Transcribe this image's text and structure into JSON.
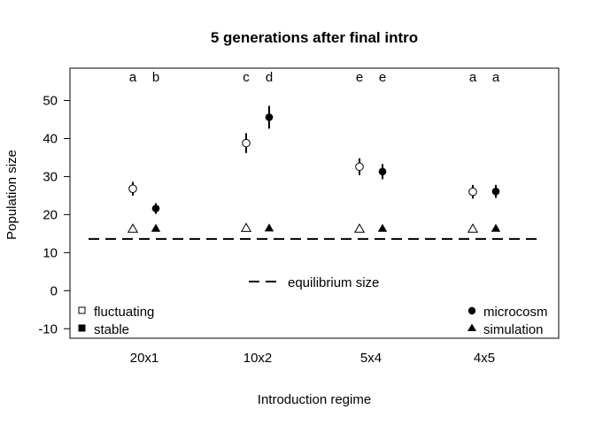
{
  "chart_data": {
    "type": "scatter",
    "title": "5 generations after final intro",
    "xlabel": "Introduction regime",
    "ylabel": "Population size",
    "categories": [
      "20x1",
      "10x2",
      "5x4",
      "4x5"
    ],
    "ylim": [
      -12.5,
      58.5
    ],
    "yticks": [
      -10,
      0,
      10,
      20,
      30,
      40,
      50
    ],
    "equilibrium_size": 13.6,
    "series": [
      {
        "name": "microcosm",
        "treatment": "fluctuating",
        "marker": "open-circle",
        "values": [
          26.8,
          38.8,
          32.6,
          26.0
        ],
        "err_low": [
          25.0,
          36.2,
          30.4,
          24.2
        ],
        "err_high": [
          28.6,
          41.4,
          34.8,
          27.8
        ]
      },
      {
        "name": "microcosm",
        "treatment": "stable",
        "marker": "filled-circle",
        "values": [
          21.6,
          45.6,
          31.3,
          26.1
        ],
        "err_low": [
          20.2,
          42.6,
          29.3,
          24.4
        ],
        "err_high": [
          23.0,
          48.6,
          33.3,
          27.8
        ]
      },
      {
        "name": "simulation",
        "treatment": "fluctuating",
        "marker": "open-triangle",
        "values": [
          16.2,
          16.4,
          16.2,
          16.2
        ]
      },
      {
        "name": "simulation",
        "treatment": "stable",
        "marker": "filled-triangle",
        "values": [
          16.3,
          16.4,
          16.3,
          16.3
        ]
      }
    ],
    "significance_letters": [
      [
        "a",
        "b"
      ],
      [
        "c",
        "d"
      ],
      [
        "e",
        "e"
      ],
      [
        "a",
        "a"
      ]
    ],
    "legend": {
      "equilibrium": "equilibrium size",
      "fluctuating": "fluctuating",
      "stable": "stable",
      "microcosm": "microcosm",
      "simulation": "simulation"
    },
    "grid": false
  }
}
